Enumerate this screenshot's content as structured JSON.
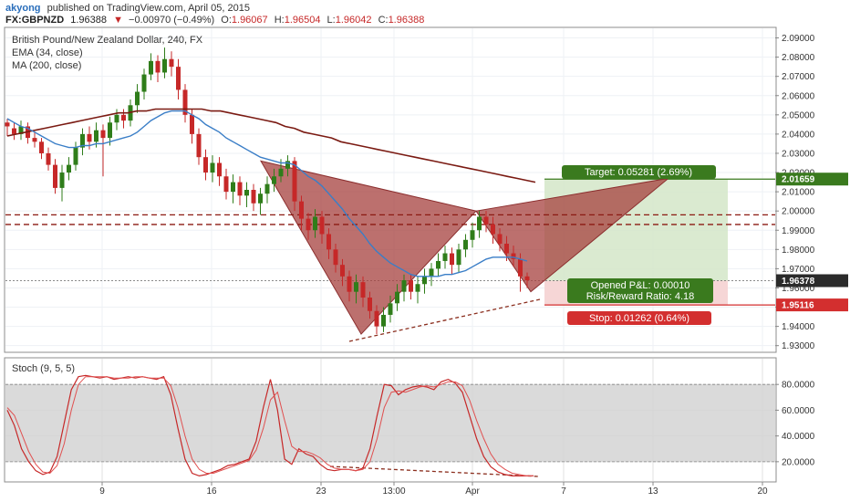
{
  "header": {
    "author": "akyong",
    "published_text": "published on TradingView.com, April 05, 2015",
    "symbol": "FX:GBPNZD",
    "last": "1.96388",
    "change_arrow": "▼",
    "change": "−0.00970 (−0.49%)",
    "o_label": "O:",
    "o": "1.96067",
    "h_label": "H:",
    "h": "1.96504",
    "l_label": "L:",
    "l": "1.96042",
    "c_label": "C:",
    "c": "1.96388"
  },
  "legend": {
    "title": "British Pound/New Zealand Dollar, 240, FX",
    "ema": "EMA (34, close)",
    "ma": "MA (200, close)",
    "stoch": "Stoch (9, 5, 5)"
  },
  "colors": {
    "bull": "#2f7d1a",
    "bear": "#c62828",
    "ema": "#3a7ec7",
    "ma": "#7a1a12",
    "pattern_fill": "#a6403d",
    "target_fill": "#d4e6c8",
    "stop_fill": "#f6d6d6",
    "target_tag": "#3a7a1e",
    "stop_tag": "#d32f2f"
  },
  "annotations": {
    "target": "Target: 0.05281 (2.69%)",
    "opened": "Opened P&L: 0.00010",
    "risk_reward": "Risk/Reward Ratio: 4.18",
    "stop": "Stop: 0.01262 (0.64%)"
  },
  "chart_data": [
    {
      "type": "candlestick",
      "title": "British Pound/New Zealand Dollar, 240, FX",
      "ylim": [
        1.927,
        2.095
      ],
      "y_ticks": [
        "2.09000",
        "2.08000",
        "2.07000",
        "2.06000",
        "2.05000",
        "2.04000",
        "2.03000",
        "2.02000",
        "2.01000",
        "2.00000",
        "1.99000",
        "1.98000",
        "1.97000",
        "1.96000",
        "1.95000",
        "1.94000",
        "1.93000"
      ],
      "x_ticks": [
        "9",
        "16",
        "23",
        "13:00",
        "Apr",
        "7",
        "13",
        "20"
      ],
      "candles": [
        [
          2.046,
          2.044,
          2.048,
          2.039
        ],
        [
          2.043,
          2.04,
          2.046,
          2.037
        ],
        [
          2.04,
          2.044,
          2.047,
          2.037
        ],
        [
          2.044,
          2.038,
          2.046,
          2.035
        ],
        [
          2.038,
          2.036,
          2.041,
          2.033
        ],
        [
          2.036,
          2.03,
          2.038,
          2.027
        ],
        [
          2.03,
          2.024,
          2.033,
          2.021
        ],
        [
          2.024,
          2.012,
          2.027,
          2.009
        ],
        [
          2.012,
          2.02,
          2.024,
          2.005
        ],
        [
          2.02,
          2.024,
          2.028,
          2.016
        ],
        [
          2.024,
          2.033,
          2.036,
          2.021
        ],
        [
          2.033,
          2.04,
          2.043,
          2.029
        ],
        [
          2.04,
          2.036,
          2.044,
          2.032
        ],
        [
          2.036,
          2.042,
          2.046,
          2.033
        ],
        [
          2.042,
          2.038,
          2.045,
          2.018
        ],
        [
          2.038,
          2.046,
          2.049,
          2.034
        ],
        [
          2.046,
          2.05,
          2.053,
          2.042
        ],
        [
          2.05,
          2.047,
          2.053,
          2.043
        ],
        [
          2.047,
          2.055,
          2.058,
          2.044
        ],
        [
          2.055,
          2.062,
          2.066,
          2.051
        ],
        [
          2.062,
          2.071,
          2.074,
          2.058
        ],
        [
          2.071,
          2.078,
          2.082,
          2.068
        ],
        [
          2.078,
          2.072,
          2.081,
          2.067
        ],
        [
          2.072,
          2.079,
          2.085,
          2.069
        ],
        [
          2.079,
          2.075,
          2.083,
          2.07
        ],
        [
          2.075,
          2.063,
          2.079,
          2.058
        ],
        [
          2.063,
          2.05,
          2.066,
          2.046
        ],
        [
          2.05,
          2.04,
          2.053,
          2.035
        ],
        [
          2.04,
          2.028,
          2.043,
          2.024
        ],
        [
          2.028,
          2.02,
          2.032,
          2.016
        ],
        [
          2.02,
          2.025,
          2.029,
          2.015
        ],
        [
          2.025,
          2.018,
          2.028,
          2.013
        ],
        [
          2.018,
          2.01,
          2.022,
          2.006
        ],
        [
          2.01,
          2.015,
          2.019,
          2.004
        ],
        [
          2.015,
          2.008,
          2.018,
          2.003
        ],
        [
          2.008,
          2.011,
          2.015,
          2.002
        ],
        [
          2.011,
          2.004,
          2.014,
          2.0
        ],
        [
          2.004,
          2.009,
          2.012,
          1.998
        ],
        [
          2.009,
          2.014,
          2.018,
          2.004
        ],
        [
          2.014,
          2.018,
          2.022,
          2.01
        ],
        [
          2.018,
          2.022,
          2.027,
          2.015
        ],
        [
          2.022,
          2.026,
          2.029,
          2.018
        ],
        [
          2.026,
          2.005,
          2.028,
          2.0
        ],
        [
          2.005,
          1.996,
          2.008,
          1.99
        ],
        [
          1.996,
          1.99,
          1.999,
          1.985
        ],
        [
          1.99,
          1.997,
          2.001,
          1.986
        ],
        [
          1.997,
          1.988,
          2.0,
          1.983
        ],
        [
          1.988,
          1.98,
          1.991,
          1.975
        ],
        [
          1.98,
          1.972,
          1.983,
          1.968
        ],
        [
          1.972,
          1.966,
          1.975,
          1.961
        ],
        [
          1.966,
          1.958,
          1.969,
          1.953
        ],
        [
          1.958,
          1.963,
          1.967,
          1.952
        ],
        [
          1.963,
          1.955,
          1.966,
          1.95
        ],
        [
          1.955,
          1.948,
          1.958,
          1.944
        ],
        [
          1.948,
          1.94,
          1.951,
          1.936
        ],
        [
          1.94,
          1.946,
          1.95,
          1.937
        ],
        [
          1.946,
          1.952,
          1.956,
          1.942
        ],
        [
          1.952,
          1.958,
          1.962,
          1.948
        ],
        [
          1.958,
          1.964,
          1.967,
          1.953
        ],
        [
          1.964,
          1.958,
          1.967,
          1.954
        ],
        [
          1.958,
          1.962,
          1.966,
          1.952
        ],
        [
          1.962,
          1.966,
          1.97,
          1.957
        ],
        [
          1.966,
          1.97,
          1.973,
          1.961
        ],
        [
          1.97,
          1.974,
          1.978,
          1.966
        ],
        [
          1.974,
          1.978,
          1.982,
          1.97
        ],
        [
          1.978,
          1.972,
          1.981,
          1.967
        ],
        [
          1.972,
          1.98,
          1.983,
          1.968
        ],
        [
          1.98,
          1.985,
          1.988,
          1.976
        ],
        [
          1.985,
          1.99,
          1.994,
          1.981
        ],
        [
          1.99,
          1.997,
          2.0,
          1.986
        ],
        [
          1.997,
          1.993,
          2.0,
          1.989
        ],
        [
          1.993,
          1.988,
          1.997,
          1.983
        ],
        [
          1.988,
          1.983,
          1.991,
          1.979
        ],
        [
          1.983,
          1.978,
          1.987,
          1.974
        ],
        [
          1.978,
          1.975,
          1.982,
          1.971
        ],
        [
          1.975,
          1.966,
          1.978,
          1.958
        ],
        [
          1.966,
          1.964,
          1.968,
          1.96
        ]
      ],
      "ema_34": [
        2.048,
        2.046,
        2.044,
        2.043,
        2.041,
        2.039,
        2.037,
        2.035,
        2.034,
        2.033,
        2.033,
        2.034,
        2.034,
        2.035,
        2.035,
        2.036,
        2.037,
        2.038,
        2.039,
        2.041,
        2.044,
        2.047,
        2.049,
        2.051,
        2.052,
        2.052,
        2.052,
        2.05,
        2.048,
        2.045,
        2.043,
        2.041,
        2.038,
        2.036,
        2.034,
        2.032,
        2.03,
        2.028,
        2.027,
        2.026,
        2.025,
        2.025,
        2.024,
        2.021,
        2.018,
        2.016,
        2.013,
        2.009,
        2.005,
        2.001,
        1.996,
        1.992,
        1.988,
        1.983,
        1.979,
        1.976,
        1.973,
        1.971,
        1.969,
        1.967,
        1.966,
        1.966,
        1.966,
        1.966,
        1.967,
        1.967,
        1.968,
        1.969,
        1.971,
        1.973,
        1.975,
        1.976,
        1.976,
        1.976,
        1.976,
        1.975,
        1.974
      ],
      "ma_200": [
        2.039,
        2.04,
        2.041,
        2.042,
        2.043,
        2.044,
        2.045,
        2.046,
        2.047,
        2.048,
        2.049,
        2.05,
        2.051,
        2.051,
        2.052,
        2.052,
        2.053,
        2.053,
        2.053,
        2.053,
        2.053,
        2.053,
        2.052,
        2.052,
        2.051,
        2.05,
        2.049,
        2.048,
        2.047,
        2.046,
        2.044,
        2.043,
        2.041,
        2.04,
        2.039,
        2.038,
        2.036,
        2.035,
        2.034,
        2.033,
        2.032,
        2.031,
        2.03,
        2.029,
        2.028,
        2.027,
        2.026,
        2.025,
        2.024,
        2.023,
        2.022,
        2.021,
        2.02,
        2.019,
        2.018,
        2.017,
        2.016,
        2.015
      ],
      "levels": {
        "target": 2.01659,
        "entry": 1.96378,
        "stop": 1.95116
      },
      "resistance": [
        1.998,
        1.993
      ],
      "price_tags": [
        "2.01659",
        "1.96378",
        "1.95116"
      ],
      "pattern": {
        "X": 2.026,
        "A": 1.936,
        "B": 2.0,
        "C": 1.958,
        "D": 2.017
      }
    },
    {
      "type": "line",
      "title": "Stoch (9, 5, 5)",
      "ylim": [
        5,
        100
      ],
      "y_ticks": [
        "80.0000",
        "60.0000",
        "40.0000",
        "20.0000"
      ],
      "band": [
        20,
        80
      ],
      "series": [
        {
          "values": [
            60,
            48,
            30,
            20,
            13,
            10,
            12,
            24,
            50,
            76,
            86,
            87,
            86,
            85,
            86,
            84,
            85,
            86,
            85,
            86,
            85,
            84,
            86,
            72,
            46,
            22,
            11,
            9,
            10,
            12,
            14,
            17,
            18,
            20,
            22,
            36,
            62,
            84,
            60,
            22,
            18,
            30,
            26,
            24,
            18,
            14,
            13,
            14,
            14,
            13,
            15,
            30,
            56,
            80,
            79,
            72,
            76,
            78,
            79,
            78,
            76,
            82,
            84,
            81,
            74,
            56,
            38,
            24,
            16,
            12,
            10,
            9,
            9,
            9,
            9
          ]
        },
        {
          "values": [
            62,
            56,
            42,
            28,
            18,
            12,
            11,
            17,
            34,
            60,
            80,
            86,
            86,
            86,
            86,
            85,
            85,
            85,
            86,
            86,
            85,
            85,
            85,
            79,
            62,
            40,
            22,
            14,
            11,
            11,
            13,
            15,
            17,
            19,
            21,
            29,
            46,
            68,
            74,
            52,
            32,
            28,
            28,
            26,
            23,
            18,
            15,
            14,
            14,
            13,
            14,
            20,
            38,
            62,
            74,
            75,
            74,
            76,
            78,
            79,
            78,
            80,
            82,
            82,
            79,
            68,
            52,
            38,
            26,
            18,
            14,
            11,
            10,
            9,
            9
          ]
        }
      ]
    }
  ]
}
